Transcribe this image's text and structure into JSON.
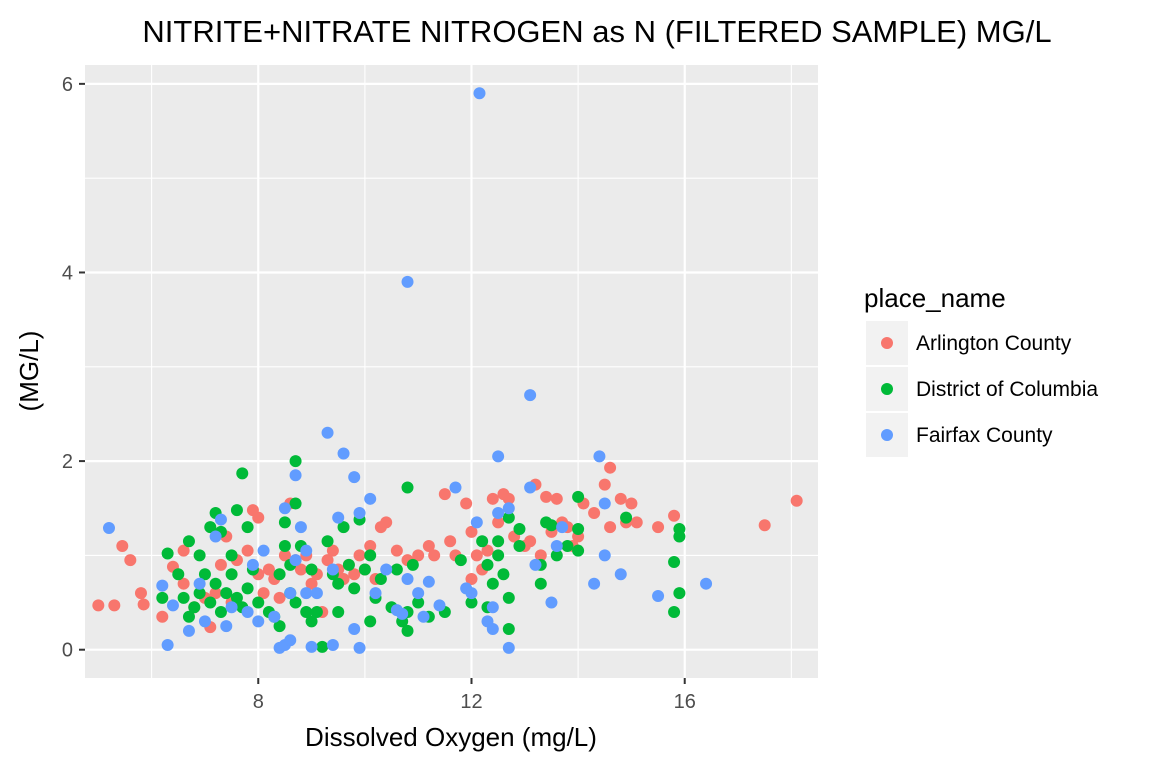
{
  "chart_data": {
    "type": "scatter",
    "title": "NITRITE+NITRATE NITROGEN as N (FILTERED SAMPLE) MG/L",
    "xlabel": "Dissolved Oxygen (mg/L)",
    "ylabel": "(MG/L)",
    "xlim": [
      4.75,
      18.5
    ],
    "ylim": [
      -0.3,
      6.2
    ],
    "x_ticks": [
      8,
      12,
      16
    ],
    "y_ticks": [
      0,
      2,
      4,
      6
    ],
    "grid": true,
    "background": "#ebebeb",
    "legend": {
      "title": "place_name",
      "placement": "right",
      "entries": [
        "Arlington County",
        "District of Columbia",
        "Fairfax County"
      ]
    },
    "series": [
      {
        "name": "Arlington County",
        "color": "#F8766D",
        "points": [
          [
            5.0,
            0.47
          ],
          [
            5.3,
            0.47
          ],
          [
            5.45,
            1.1
          ],
          [
            5.6,
            0.95
          ],
          [
            5.8,
            0.6
          ],
          [
            5.85,
            0.48
          ],
          [
            6.2,
            0.35
          ],
          [
            6.4,
            0.88
          ],
          [
            6.6,
            0.7
          ],
          [
            6.6,
            1.05
          ],
          [
            6.8,
            0.45
          ],
          [
            7.0,
            0.55
          ],
          [
            7.1,
            0.24
          ],
          [
            7.2,
            0.6
          ],
          [
            7.3,
            0.9
          ],
          [
            7.4,
            1.2
          ],
          [
            7.5,
            0.5
          ],
          [
            7.6,
            0.95
          ],
          [
            7.8,
            1.05
          ],
          [
            7.9,
            1.48
          ],
          [
            8.0,
            0.8
          ],
          [
            8.0,
            1.4
          ],
          [
            8.1,
            0.6
          ],
          [
            8.2,
            0.85
          ],
          [
            8.3,
            0.75
          ],
          [
            8.4,
            0.55
          ],
          [
            8.5,
            1.0
          ],
          [
            8.6,
            1.55
          ],
          [
            8.7,
            0.95
          ],
          [
            8.8,
            0.85
          ],
          [
            8.9,
            1.0
          ],
          [
            9.0,
            0.7
          ],
          [
            9.1,
            0.8
          ],
          [
            9.2,
            0.4
          ],
          [
            9.3,
            0.95
          ],
          [
            9.4,
            1.05
          ],
          [
            9.5,
            0.85
          ],
          [
            9.6,
            0.75
          ],
          [
            9.7,
            0.9
          ],
          [
            9.8,
            0.8
          ],
          [
            9.9,
            1.0
          ],
          [
            10.0,
            0.85
          ],
          [
            10.1,
            1.1
          ],
          [
            10.2,
            0.75
          ],
          [
            10.3,
            1.3
          ],
          [
            10.4,
            1.35
          ],
          [
            10.6,
            1.05
          ],
          [
            10.8,
            0.95
          ],
          [
            11.0,
            1.0
          ],
          [
            11.2,
            1.1
          ],
          [
            11.3,
            1.0
          ],
          [
            11.5,
            1.65
          ],
          [
            11.6,
            1.15
          ],
          [
            11.7,
            1.0
          ],
          [
            11.9,
            1.55
          ],
          [
            12.0,
            0.75
          ],
          [
            12.0,
            1.25
          ],
          [
            12.1,
            1.0
          ],
          [
            12.2,
            0.85
          ],
          [
            12.3,
            1.05
          ],
          [
            12.4,
            1.6
          ],
          [
            12.5,
            1.35
          ],
          [
            12.6,
            1.65
          ],
          [
            12.7,
            1.6
          ],
          [
            12.8,
            1.2
          ],
          [
            13.0,
            1.1
          ],
          [
            13.1,
            1.15
          ],
          [
            13.2,
            1.75
          ],
          [
            13.3,
            1.0
          ],
          [
            13.4,
            1.62
          ],
          [
            13.5,
            1.25
          ],
          [
            13.6,
            1.6
          ],
          [
            13.7,
            1.35
          ],
          [
            13.8,
            1.3
          ],
          [
            13.9,
            1.1
          ],
          [
            14.0,
            1.2
          ],
          [
            14.1,
            1.55
          ],
          [
            14.3,
            1.45
          ],
          [
            14.5,
            1.75
          ],
          [
            14.6,
            1.93
          ],
          [
            14.6,
            1.3
          ],
          [
            14.8,
            1.6
          ],
          [
            14.9,
            1.35
          ],
          [
            15.0,
            1.55
          ],
          [
            15.1,
            1.35
          ],
          [
            15.5,
            1.3
          ],
          [
            15.8,
            1.42
          ],
          [
            17.5,
            1.32
          ],
          [
            18.1,
            1.58
          ]
        ]
      },
      {
        "name": "District of Columbia",
        "color": "#00BA38",
        "points": [
          [
            6.2,
            0.55
          ],
          [
            6.3,
            1.02
          ],
          [
            6.5,
            0.8
          ],
          [
            6.6,
            0.55
          ],
          [
            6.7,
            0.35
          ],
          [
            6.7,
            1.15
          ],
          [
            6.8,
            0.45
          ],
          [
            6.9,
            0.6
          ],
          [
            6.9,
            1.0
          ],
          [
            7.0,
            0.8
          ],
          [
            7.1,
            0.5
          ],
          [
            7.1,
            1.3
          ],
          [
            7.2,
            0.7
          ],
          [
            7.2,
            1.45
          ],
          [
            7.3,
            0.4
          ],
          [
            7.3,
            1.25
          ],
          [
            7.4,
            0.6
          ],
          [
            7.5,
            0.8
          ],
          [
            7.5,
            1.0
          ],
          [
            7.6,
            0.55
          ],
          [
            7.6,
            1.48
          ],
          [
            7.7,
            1.87
          ],
          [
            7.7,
            0.45
          ],
          [
            7.8,
            0.65
          ],
          [
            7.8,
            1.3
          ],
          [
            7.9,
            0.85
          ],
          [
            8.0,
            0.5
          ],
          [
            8.2,
            0.4
          ],
          [
            8.3,
            0.35
          ],
          [
            8.4,
            0.25
          ],
          [
            8.4,
            0.8
          ],
          [
            8.5,
            1.1
          ],
          [
            8.5,
            1.35
          ],
          [
            8.6,
            0.6
          ],
          [
            8.6,
            0.9
          ],
          [
            8.7,
            0.5
          ],
          [
            8.7,
            2.0
          ],
          [
            8.7,
            1.55
          ],
          [
            8.8,
            1.1
          ],
          [
            8.9,
            0.4
          ],
          [
            9.0,
            0.3
          ],
          [
            9.0,
            0.85
          ],
          [
            9.1,
            0.4
          ],
          [
            9.2,
            0.03
          ],
          [
            9.3,
            1.15
          ],
          [
            9.4,
            0.8
          ],
          [
            9.5,
            0.4
          ],
          [
            9.5,
            0.7
          ],
          [
            9.6,
            1.3
          ],
          [
            9.7,
            0.9
          ],
          [
            9.8,
            0.65
          ],
          [
            9.9,
            1.38
          ],
          [
            10.0,
            0.85
          ],
          [
            10.1,
            1.0
          ],
          [
            10.1,
            0.3
          ],
          [
            10.2,
            0.55
          ],
          [
            10.3,
            0.75
          ],
          [
            10.5,
            0.45
          ],
          [
            10.6,
            0.85
          ],
          [
            10.7,
            0.3
          ],
          [
            10.8,
            0.2
          ],
          [
            10.8,
            0.4
          ],
          [
            10.8,
            1.72
          ],
          [
            10.9,
            0.9
          ],
          [
            11.0,
            0.5
          ],
          [
            11.2,
            0.35
          ],
          [
            11.5,
            0.4
          ],
          [
            11.8,
            0.95
          ],
          [
            12.0,
            0.5
          ],
          [
            12.2,
            1.15
          ],
          [
            12.3,
            0.9
          ],
          [
            12.3,
            0.45
          ],
          [
            12.4,
            0.7
          ],
          [
            12.5,
            1.0
          ],
          [
            12.5,
            1.15
          ],
          [
            12.6,
            0.8
          ],
          [
            12.7,
            0.55
          ],
          [
            12.7,
            1.4
          ],
          [
            12.7,
            0.22
          ],
          [
            12.9,
            1.1
          ],
          [
            12.9,
            1.28
          ],
          [
            13.3,
            0.9
          ],
          [
            13.3,
            0.7
          ],
          [
            13.4,
            1.35
          ],
          [
            13.5,
            1.32
          ],
          [
            13.6,
            1.0
          ],
          [
            13.8,
            1.1
          ],
          [
            14.0,
            1.62
          ],
          [
            14.0,
            1.05
          ],
          [
            14.0,
            1.28
          ],
          [
            14.9,
            1.4
          ],
          [
            15.8,
            0.4
          ],
          [
            15.8,
            0.93
          ],
          [
            15.9,
            0.6
          ],
          [
            15.9,
            1.28
          ],
          [
            15.9,
            1.2
          ]
        ]
      },
      {
        "name": "Fairfax County",
        "color": "#619CFF",
        "points": [
          [
            5.2,
            1.29
          ],
          [
            6.2,
            0.68
          ],
          [
            6.3,
            0.05
          ],
          [
            6.4,
            0.47
          ],
          [
            6.7,
            0.2
          ],
          [
            6.9,
            0.7
          ],
          [
            7.0,
            0.3
          ],
          [
            7.2,
            1.2
          ],
          [
            7.3,
            1.38
          ],
          [
            7.4,
            0.25
          ],
          [
            7.5,
            0.45
          ],
          [
            7.8,
            0.4
          ],
          [
            7.9,
            0.9
          ],
          [
            8.0,
            0.3
          ],
          [
            8.1,
            1.05
          ],
          [
            8.3,
            0.35
          ],
          [
            8.4,
            0.02
          ],
          [
            8.5,
            0.05
          ],
          [
            8.5,
            1.5
          ],
          [
            8.6,
            0.1
          ],
          [
            8.6,
            0.6
          ],
          [
            8.7,
            1.85
          ],
          [
            8.7,
            0.95
          ],
          [
            8.8,
            1.3
          ],
          [
            8.9,
            0.6
          ],
          [
            8.9,
            1.05
          ],
          [
            9.0,
            0.03
          ],
          [
            9.1,
            0.6
          ],
          [
            9.3,
            2.3
          ],
          [
            9.4,
            0.05
          ],
          [
            9.4,
            0.85
          ],
          [
            9.5,
            1.4
          ],
          [
            9.6,
            2.08
          ],
          [
            9.8,
            1.83
          ],
          [
            9.8,
            0.22
          ],
          [
            9.9,
            0.02
          ],
          [
            9.9,
            1.45
          ],
          [
            10.1,
            1.6
          ],
          [
            10.2,
            0.6
          ],
          [
            10.4,
            0.85
          ],
          [
            10.6,
            0.42
          ],
          [
            10.7,
            0.38
          ],
          [
            10.8,
            3.9
          ],
          [
            10.8,
            0.75
          ],
          [
            11.0,
            0.6
          ],
          [
            11.1,
            0.35
          ],
          [
            11.2,
            0.72
          ],
          [
            11.4,
            0.47
          ],
          [
            11.7,
            1.72
          ],
          [
            11.9,
            0.65
          ],
          [
            12.0,
            0.6
          ],
          [
            12.1,
            1.35
          ],
          [
            12.15,
            5.9
          ],
          [
            12.3,
            0.3
          ],
          [
            12.4,
            0.22
          ],
          [
            12.4,
            0.45
          ],
          [
            12.5,
            2.05
          ],
          [
            12.5,
            1.45
          ],
          [
            12.7,
            1.5
          ],
          [
            12.7,
            0.02
          ],
          [
            13.1,
            2.7
          ],
          [
            13.1,
            1.72
          ],
          [
            13.2,
            0.9
          ],
          [
            13.5,
            0.5
          ],
          [
            13.6,
            1.1
          ],
          [
            13.7,
            1.3
          ],
          [
            14.3,
            0.7
          ],
          [
            14.4,
            2.05
          ],
          [
            14.5,
            1.55
          ],
          [
            14.5,
            1.0
          ],
          [
            14.8,
            0.8
          ],
          [
            15.5,
            0.57
          ],
          [
            16.4,
            0.7
          ]
        ]
      }
    ]
  }
}
